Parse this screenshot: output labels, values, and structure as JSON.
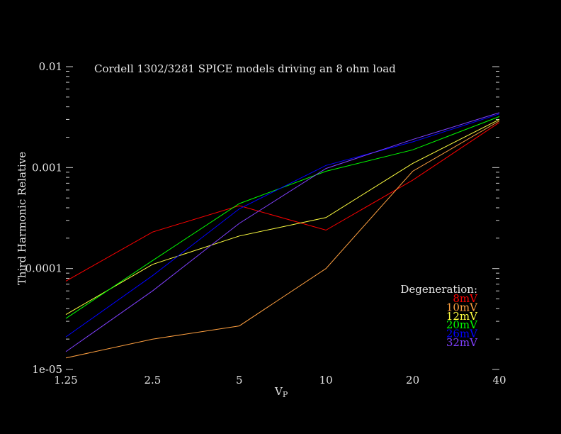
{
  "chart_data": {
    "type": "line",
    "title": "Cordell 1302/3281 SPICE models driving an 8 ohm load",
    "xlabel": "V",
    "xlabel_sub": "P",
    "ylabel": "Third Harmonic Relative",
    "x_scale": "log",
    "y_scale": "log",
    "x": [
      1.25,
      2.5,
      5,
      10,
      20,
      40
    ],
    "x_tick_labels": [
      "1.25",
      "2.5",
      "5",
      "10",
      "20",
      "40"
    ],
    "xlim": [
      1.25,
      40
    ],
    "y_ticks": [
      1e-05,
      0.0001,
      0.001,
      0.01
    ],
    "y_tick_labels": [
      "1e-05",
      "0.0001",
      "0.001",
      "0.01"
    ],
    "ylim": [
      1e-05,
      0.01
    ],
    "grid": false,
    "legend_title": "Degeneration:",
    "legend_position": "bottom-right",
    "series": [
      {
        "name": "8mV",
        "color": "#ff0000",
        "values": [
          7.5e-05,
          0.00023,
          0.00042,
          0.00024,
          0.00075,
          0.0028
        ]
      },
      {
        "name": "10mV",
        "color": "#ffa040",
        "values": [
          1.3e-05,
          2e-05,
          2.7e-05,
          0.0001,
          0.00092,
          0.0029
        ]
      },
      {
        "name": "12mV",
        "color": "#ffff40",
        "values": [
          3.5e-05,
          0.00011,
          0.00021,
          0.00032,
          0.0011,
          0.003
        ]
      },
      {
        "name": "20mV",
        "color": "#00ff00",
        "values": [
          3.2e-05,
          0.00012,
          0.00044,
          0.00092,
          0.0015,
          0.0032
        ]
      },
      {
        "name": "26mV",
        "color": "#0000ff",
        "values": [
          2.1e-05,
          8.5e-05,
          0.00039,
          0.00105,
          0.0018,
          0.0034
        ]
      },
      {
        "name": "32mV",
        "color": "#8040ff",
        "values": [
          1.5e-05,
          6e-05,
          0.00028,
          0.00098,
          0.0019,
          0.0035
        ]
      }
    ]
  }
}
